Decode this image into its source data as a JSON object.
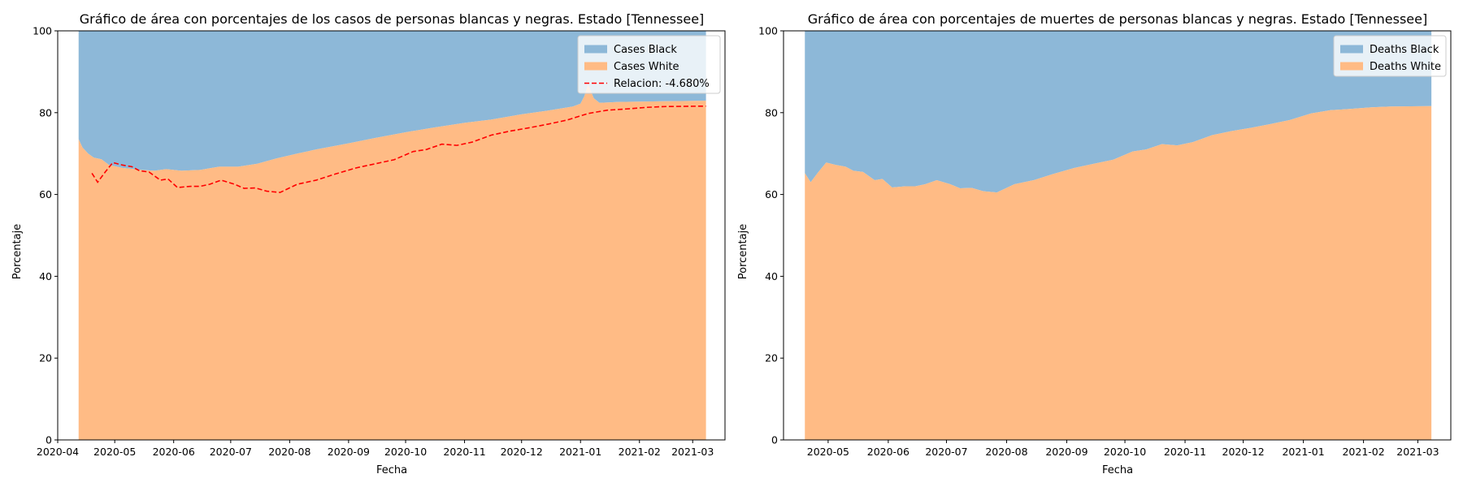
{
  "chart_data": [
    {
      "type": "area",
      "title": "Gráfico de área con porcentajes de los casos de personas blancas y negras. Estado [Tennessee]",
      "xlabel": "Fecha",
      "ylabel": "Porcentaje",
      "xlim": [
        "2020-04-01",
        "2021-03-18"
      ],
      "ylim": [
        0,
        100
      ],
      "grid": false,
      "legend_position": "top-right",
      "x_tick_labels": [
        "2020-04",
        "2020-05",
        "2020-06",
        "2020-07",
        "2020-08",
        "2020-09",
        "2020-10",
        "2020-11",
        "2020-12",
        "2021-01",
        "2021-02",
        "2021-03"
      ],
      "y_tick_labels": [
        "0",
        "20",
        "40",
        "60",
        "80",
        "100"
      ],
      "stack_range": [
        "2020-04-12",
        "2021-03-08"
      ],
      "series": [
        {
          "name": "Cases White",
          "color": "#ffbb85",
          "points": [
            [
              "2020-04-12",
              73.5
            ],
            [
              "2020-04-14",
              71.5
            ],
            [
              "2020-04-17",
              70.0
            ],
            [
              "2020-04-20",
              69.0
            ],
            [
              "2020-04-24",
              68.6
            ],
            [
              "2020-04-28",
              67.2
            ],
            [
              "2020-05-05",
              66.5
            ],
            [
              "2020-05-15",
              66.0
            ],
            [
              "2020-05-22",
              65.8
            ],
            [
              "2020-05-28",
              66.2
            ],
            [
              "2020-06-05",
              65.8
            ],
            [
              "2020-06-15",
              66.0
            ],
            [
              "2020-06-25",
              66.8
            ],
            [
              "2020-07-05",
              66.8
            ],
            [
              "2020-07-15",
              67.5
            ],
            [
              "2020-07-25",
              68.8
            ],
            [
              "2020-08-05",
              70.0
            ],
            [
              "2020-08-15",
              71.0
            ],
            [
              "2020-09-01",
              72.5
            ],
            [
              "2020-09-15",
              73.8
            ],
            [
              "2020-10-01",
              75.2
            ],
            [
              "2020-10-15",
              76.3
            ],
            [
              "2020-11-01",
              77.5
            ],
            [
              "2020-11-15",
              78.3
            ],
            [
              "2020-12-01",
              79.6
            ],
            [
              "2020-12-15",
              80.5
            ],
            [
              "2020-12-28",
              81.5
            ],
            [
              "2021-01-01",
              82.2
            ],
            [
              "2021-01-03",
              84.0
            ],
            [
              "2021-01-05",
              86.8
            ],
            [
              "2021-01-08",
              83.5
            ],
            [
              "2021-01-11",
              82.4
            ],
            [
              "2021-01-20",
              82.6
            ],
            [
              "2021-02-01",
              82.7
            ],
            [
              "2021-02-15",
              82.8
            ],
            [
              "2021-03-08",
              82.9
            ]
          ]
        },
        {
          "name": "Cases Black",
          "color": "#8db8d8",
          "top": 100
        },
        {
          "name": "Relacion: -4.680%",
          "color": "#ff0000",
          "style": "dashed",
          "points": [
            [
              "2020-04-19",
              65.2
            ],
            [
              "2020-04-22",
              63.0
            ],
            [
              "2020-04-26",
              65.5
            ],
            [
              "2020-04-30",
              67.8
            ],
            [
              "2020-05-05",
              67.2
            ],
            [
              "2020-05-10",
              66.8
            ],
            [
              "2020-05-14",
              65.8
            ],
            [
              "2020-05-19",
              65.5
            ],
            [
              "2020-05-25",
              63.5
            ],
            [
              "2020-05-29",
              63.8
            ],
            [
              "2020-06-03",
              61.7
            ],
            [
              "2020-06-10",
              62.0
            ],
            [
              "2020-06-15",
              62.0
            ],
            [
              "2020-06-20",
              62.5
            ],
            [
              "2020-06-26",
              63.5
            ],
            [
              "2020-07-03",
              62.5
            ],
            [
              "2020-07-08",
              61.5
            ],
            [
              "2020-07-14",
              61.6
            ],
            [
              "2020-07-20",
              60.8
            ],
            [
              "2020-07-27",
              60.5
            ],
            [
              "2020-08-05",
              62.5
            ],
            [
              "2020-08-15",
              63.5
            ],
            [
              "2020-08-25",
              65.0
            ],
            [
              "2020-09-05",
              66.5
            ],
            [
              "2020-09-15",
              67.5
            ],
            [
              "2020-09-25",
              68.5
            ],
            [
              "2020-10-05",
              70.5
            ],
            [
              "2020-10-12",
              71.0
            ],
            [
              "2020-10-20",
              72.3
            ],
            [
              "2020-10-28",
              72.0
            ],
            [
              "2020-11-05",
              72.8
            ],
            [
              "2020-11-15",
              74.5
            ],
            [
              "2020-11-25",
              75.5
            ],
            [
              "2020-12-05",
              76.3
            ],
            [
              "2020-12-15",
              77.2
            ],
            [
              "2020-12-25",
              78.2
            ],
            [
              "2021-01-05",
              79.8
            ],
            [
              "2021-01-15",
              80.6
            ],
            [
              "2021-01-25",
              80.9
            ],
            [
              "2021-02-05",
              81.3
            ],
            [
              "2021-02-15",
              81.5
            ],
            [
              "2021-03-08",
              81.6
            ]
          ]
        }
      ]
    },
    {
      "type": "area",
      "title": "Gráfico de área con porcentajes de muertes de personas blancas y negras. Estado [Tennessee]",
      "xlabel": "Fecha",
      "ylabel": "Porcentaje",
      "xlim": [
        "2020-04-08",
        "2021-03-18"
      ],
      "ylim": [
        0,
        100
      ],
      "grid": false,
      "legend_position": "top-right",
      "x_tick_labels": [
        "2020-05",
        "2020-06",
        "2020-07",
        "2020-08",
        "2020-09",
        "2020-10",
        "2020-11",
        "2020-12",
        "2021-01",
        "2021-02",
        "2021-03"
      ],
      "y_tick_labels": [
        "0",
        "20",
        "40",
        "60",
        "80",
        "100"
      ],
      "stack_range": [
        "2020-04-19",
        "2021-03-08"
      ],
      "series": [
        {
          "name": "Deaths White",
          "color": "#ffbb85",
          "points": [
            [
              "2020-04-19",
              65.2
            ],
            [
              "2020-04-22",
              63.0
            ],
            [
              "2020-04-26",
              65.5
            ],
            [
              "2020-04-30",
              67.8
            ],
            [
              "2020-05-05",
              67.2
            ],
            [
              "2020-05-10",
              66.8
            ],
            [
              "2020-05-14",
              65.8
            ],
            [
              "2020-05-19",
              65.5
            ],
            [
              "2020-05-25",
              63.5
            ],
            [
              "2020-05-29",
              63.8
            ],
            [
              "2020-06-03",
              61.7
            ],
            [
              "2020-06-10",
              62.0
            ],
            [
              "2020-06-15",
              62.0
            ],
            [
              "2020-06-20",
              62.5
            ],
            [
              "2020-06-26",
              63.5
            ],
            [
              "2020-07-03",
              62.5
            ],
            [
              "2020-07-08",
              61.5
            ],
            [
              "2020-07-14",
              61.6
            ],
            [
              "2020-07-20",
              60.8
            ],
            [
              "2020-07-27",
              60.5
            ],
            [
              "2020-08-05",
              62.5
            ],
            [
              "2020-08-15",
              63.5
            ],
            [
              "2020-08-25",
              65.0
            ],
            [
              "2020-09-05",
              66.5
            ],
            [
              "2020-09-15",
              67.5
            ],
            [
              "2020-09-25",
              68.5
            ],
            [
              "2020-10-05",
              70.5
            ],
            [
              "2020-10-12",
              71.0
            ],
            [
              "2020-10-20",
              72.3
            ],
            [
              "2020-10-28",
              72.0
            ],
            [
              "2020-11-05",
              72.8
            ],
            [
              "2020-11-15",
              74.5
            ],
            [
              "2020-11-25",
              75.5
            ],
            [
              "2020-12-05",
              76.3
            ],
            [
              "2020-12-15",
              77.2
            ],
            [
              "2020-12-25",
              78.2
            ],
            [
              "2021-01-05",
              79.8
            ],
            [
              "2021-01-15",
              80.6
            ],
            [
              "2021-01-25",
              80.9
            ],
            [
              "2021-02-05",
              81.3
            ],
            [
              "2021-02-15",
              81.5
            ],
            [
              "2021-03-08",
              81.6
            ]
          ]
        },
        {
          "name": "Deaths Black",
          "color": "#8db8d8",
          "top": 100
        }
      ]
    }
  ]
}
